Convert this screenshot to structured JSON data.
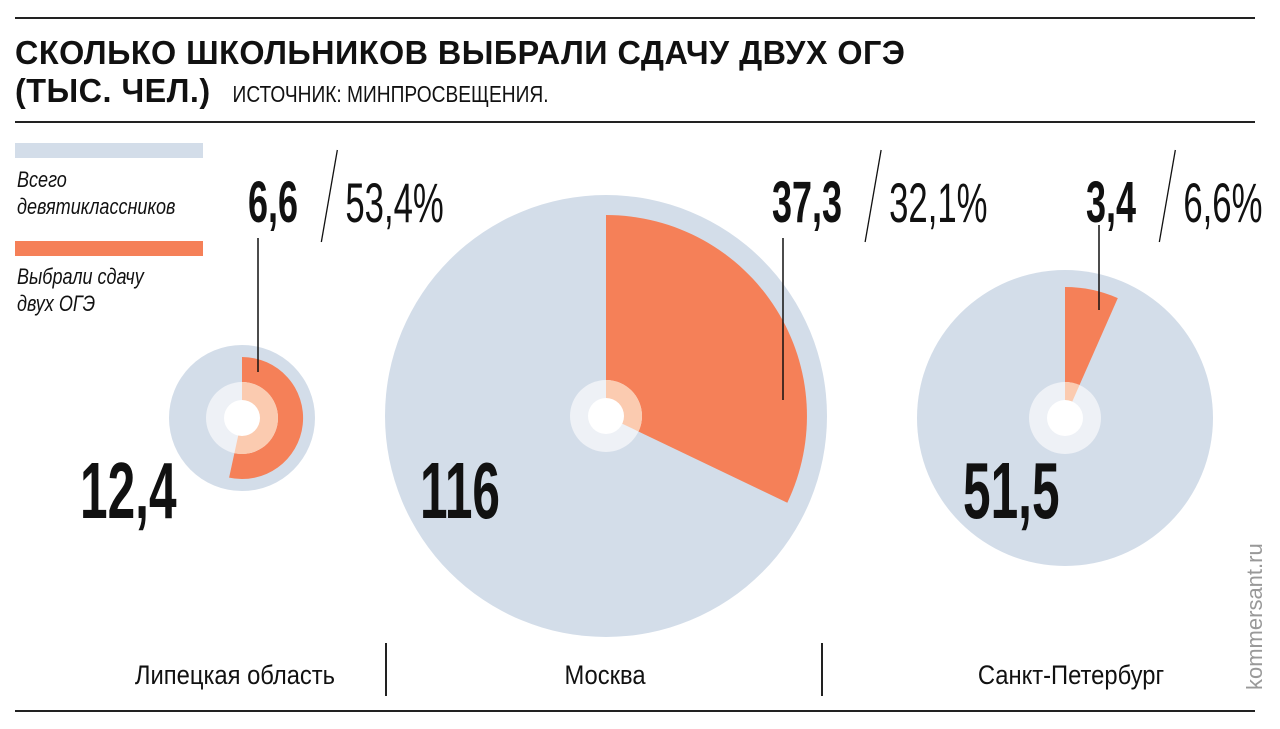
{
  "header": {
    "title_line1": "СКОЛЬКО ШКОЛЬНИКОВ ВЫБРАЛИ СДАЧУ ДВУХ ОГЭ",
    "title_line2": "(ТЫС. ЧЕЛ.)",
    "source": "ИСТОЧНИК: МИНПРОСВЕЩЕНИЯ."
  },
  "legend": [
    {
      "label": "Всего девятиклассников",
      "lines": [
        "Всего",
        "девятиклассников"
      ],
      "color": "#d3dde9"
    },
    {
      "label": "Выбрали сдачу двух ОГЭ",
      "lines": [
        "Выбрали сдачу",
        "двух ОГЭ"
      ],
      "color": "#f58058"
    }
  ],
  "watermark": "kommersant.ru",
  "chart_data": {
    "type": "pie",
    "title": "Сколько школьников выбрали сдачу двух ОГЭ (тыс. чел.)",
    "units": "тыс. чел.",
    "series": [
      "Всего девятиклассников",
      "Выбрали сдачу двух ОГЭ"
    ],
    "regions": [
      {
        "name": "Липецкая область",
        "total": 12.4,
        "total_label": "12,4",
        "chosen": 6.6,
        "chosen_label": "6,6",
        "percent": 53.4,
        "percent_label": "53,4%"
      },
      {
        "name": "Москва",
        "total": 116,
        "total_label": "116",
        "chosen": 37.3,
        "chosen_label": "37,3",
        "percent": 32.1,
        "percent_label": "32,1%"
      },
      {
        "name": "Санкт-Петербург",
        "total": 51.5,
        "total_label": "51,5",
        "chosen": 3.4,
        "chosen_label": "3,4",
        "percent": 6.6,
        "percent_label": "6,6%"
      }
    ],
    "colors": {
      "total": "#d3dde9",
      "chosen": "#f58058",
      "chosen_inner": "#fbcbb0",
      "ring": "#eef1f6"
    }
  }
}
